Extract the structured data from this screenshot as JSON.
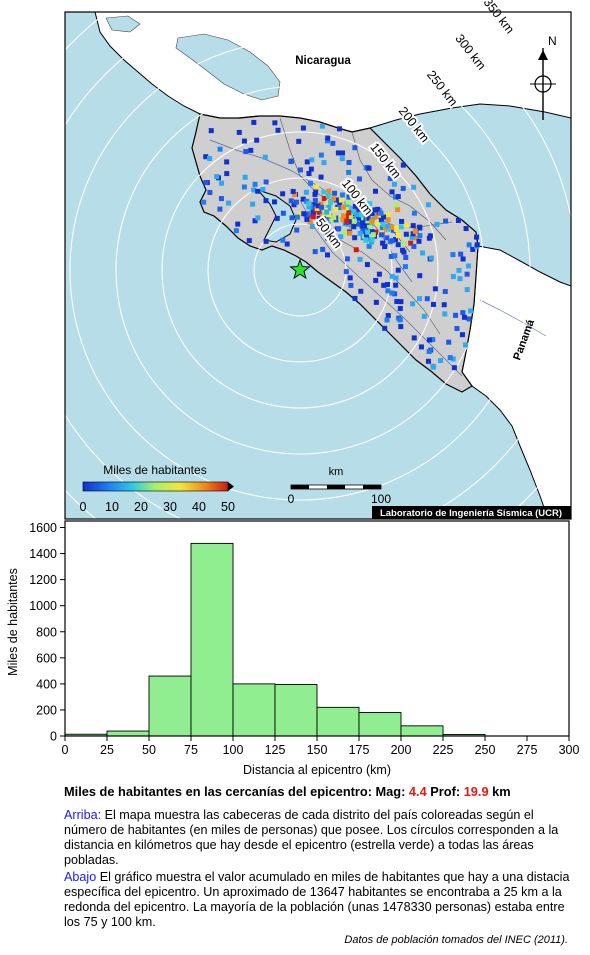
{
  "map": {
    "labels": {
      "nicaragua": "Nicaragua",
      "panama": "Panamá",
      "north": "N",
      "credit": "Laboratorio de Ingeniería Sísmica (UCR)"
    },
    "rings": [
      {
        "label": "50 km"
      },
      {
        "label": "100 km"
      },
      {
        "label": "150 km"
      },
      {
        "label": "200 km"
      },
      {
        "label": "250 km"
      },
      {
        "label": "300 km"
      },
      {
        "label": "350 km"
      }
    ],
    "colorbar": {
      "title": "Miles de habitantes",
      "ticks": [
        "0",
        "10",
        "20",
        "30",
        "40",
        "50"
      ],
      "colors": [
        "#1030d0",
        "#1e7cf0",
        "#2fc8e8",
        "#a8ef6a",
        "#f4e63a",
        "#f08a1c",
        "#d11a14"
      ]
    },
    "scalebar": {
      "unit": "km",
      "start": "0",
      "end": "100"
    },
    "colors": {
      "ocean": "#b6dde8",
      "land_costa_rica": "#cfcfcf",
      "land_neighbor": "#ffffff",
      "epicenter": "#2ee02e"
    }
  },
  "chart_data": {
    "type": "bar",
    "bin_edges": [
      0,
      25,
      50,
      75,
      100,
      125,
      150,
      175,
      200,
      225,
      250,
      275,
      300
    ],
    "values": [
      13647,
      38000,
      460000,
      1478330,
      400000,
      395000,
      220000,
      180000,
      78000,
      12000,
      0,
      0
    ],
    "values_thousands": [
      13.6,
      38,
      460,
      1478.3,
      400,
      395,
      220,
      180,
      78,
      12,
      0,
      0
    ],
    "xlabel": "Distancia al epicentro (km)",
    "ylabel": "Miles de habitantes",
    "xlim": [
      0,
      300
    ],
    "ylim": [
      0,
      1650
    ],
    "xticks": [
      0,
      25,
      50,
      75,
      100,
      125,
      150,
      175,
      200,
      225,
      250,
      275,
      300
    ],
    "yticks": [
      0,
      200,
      400,
      600,
      800,
      1000,
      1200,
      1400,
      1600
    ],
    "bar_color": "#90ee90",
    "grid": false
  },
  "caption": {
    "title_prefix": "Miles de habitantes en las cercanías del epicentro: Mag: ",
    "mag": "4.4",
    "depth_prefix": " Prof: ",
    "depth": "19.9",
    "depth_unit": " km",
    "arriba_label": "Arriba:",
    "arriba_text": " El mapa muestra las cabeceras de cada distrito del país coloreadas según el número de habitantes (en miles de personas) que posee.  Los círculos corresponden a la distancia en kilómetros que hay desde el epicentro (estrella verde) a todas las áreas pobladas.",
    "abajo_label": "Abajo",
    "abajo_text": " El gráfico muestra el valor acumulado en miles de habitantes que hay a una distacia específica del epicentro.  Un aproximado de 13647 habitantes se encontraba a 25 km a la redonda del epicentro.  La mayoría de la población (unas 1478330 personas) estaba entre los 75 y 100 km.",
    "source": "Datos de población tomados del INEC (2011)."
  }
}
